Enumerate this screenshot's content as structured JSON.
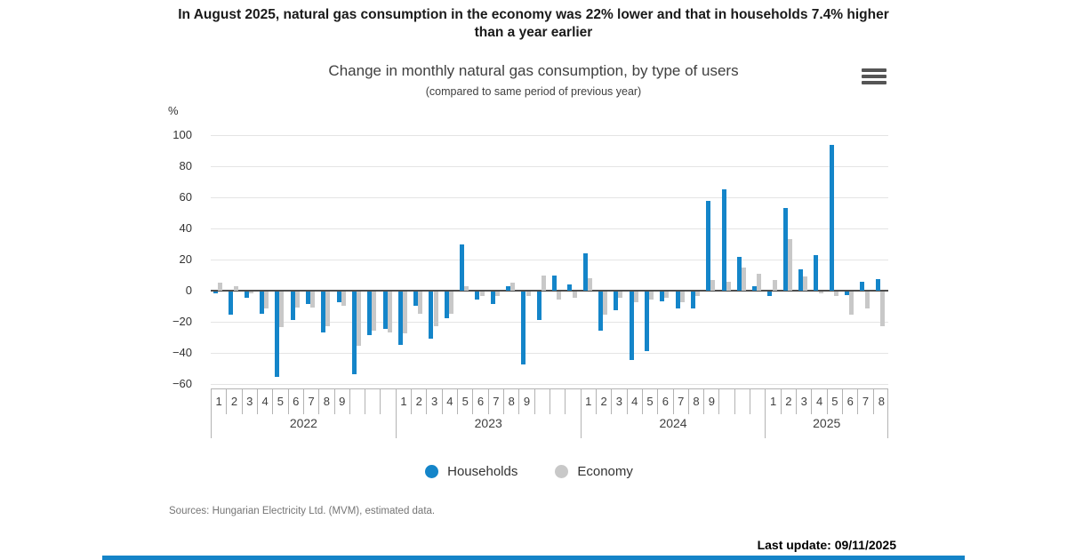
{
  "header": {
    "title": "In August 2025, natural gas consumption in the economy was 22% lower and that in households 7.4% higher than a year earlier"
  },
  "chart": {
    "title": "Change in monthly natural gas consumption, by type of users",
    "subtitle": "(compared to same period of previous year)",
    "unit_label": "%",
    "colors": {
      "households": "#1485c9",
      "economy": "#c8c8c8",
      "gridline": "#e4e4e4",
      "zero_line": "#4d4d4d",
      "axis_line": "#b3b3b3",
      "accent_bar": "#1584c8"
    },
    "legend": [
      {
        "label": "Households",
        "color": "#1485c9"
      },
      {
        "label": "Economy",
        "color": "#c8c8c8"
      }
    ]
  },
  "chart_data": {
    "type": "bar",
    "title": "Change in monthly natural gas consumption, by type of users",
    "subtitle": "(compared to same period of previous year)",
    "ylabel": "%",
    "ylim": [
      -60,
      100
    ],
    "yticks": [
      100,
      80,
      60,
      40,
      20,
      0,
      -20,
      -40,
      -60
    ],
    "grid": "horizontal",
    "legend_position": "bottom",
    "series_names": [
      "Households",
      "Economy"
    ],
    "years": [
      {
        "year": "2022",
        "month_labels": [
          "1",
          "2",
          "3",
          "4",
          "5",
          "6",
          "7",
          "8",
          "9",
          "",
          "",
          ""
        ],
        "households": [
          -1,
          -15,
          -4,
          -14,
          -55,
          -18,
          -8,
          -26,
          -7,
          -53,
          -28,
          -24
        ],
        "economy": [
          5,
          3,
          -1,
          -11,
          -23,
          -10,
          -10,
          -22,
          -9,
          -35,
          -25,
          -26
        ]
      },
      {
        "year": "2023",
        "month_labels": [
          "1",
          "2",
          "3",
          "4",
          "5",
          "6",
          "7",
          "8",
          "9",
          "",
          "",
          ""
        ],
        "households": [
          -34,
          -9,
          -30,
          -17,
          30,
          -5,
          -8,
          3,
          -47,
          -18,
          10,
          4
        ],
        "economy": [
          -27,
          -14,
          -22,
          -14,
          3,
          -3,
          -3,
          5,
          -3,
          10,
          -5,
          -4
        ]
      },
      {
        "year": "2024",
        "month_labels": [
          "1",
          "2",
          "3",
          "4",
          "5",
          "6",
          "7",
          "8",
          "9",
          "",
          "",
          ""
        ],
        "households": [
          24,
          -25,
          -12,
          -44,
          -38,
          -6,
          -11,
          -11,
          58,
          65,
          22,
          3
        ],
        "economy": [
          8,
          -15,
          -4,
          -7,
          -5,
          -4,
          -7,
          -3,
          7,
          6,
          15,
          11
        ]
      },
      {
        "year": "2025",
        "month_labels": [
          "1",
          "2",
          "3",
          "4",
          "5",
          "6",
          "7",
          "8"
        ],
        "households": [
          -3,
          53,
          14,
          23,
          94,
          -2,
          6,
          7.4
        ],
        "economy": [
          7,
          33,
          9,
          -1,
          -3,
          -15,
          -11,
          -22
        ]
      }
    ]
  },
  "footer": {
    "sources": "Sources: Hungarian Electricity Ltd. (MVM), estimated data.",
    "last_update": "Last update: 09/11/2025"
  }
}
